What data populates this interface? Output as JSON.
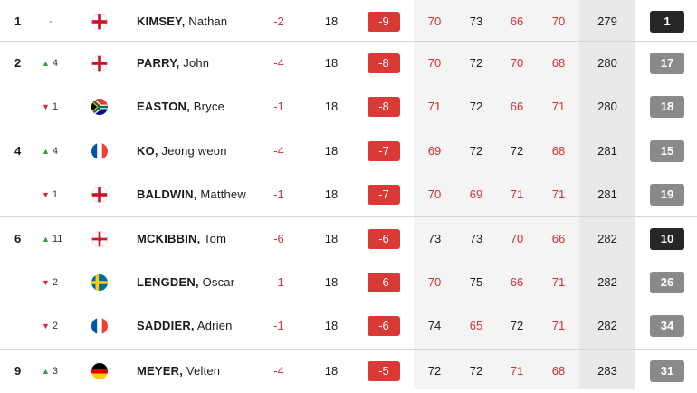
{
  "leaderboard": {
    "rows": [
      {
        "pos": "1",
        "move": "-",
        "move_dir": "none",
        "flag": "england",
        "last": "KIMSEY,",
        "first": "Nathan",
        "today": "-2",
        "thru": "18",
        "total": "-9",
        "r1": "70",
        "r2": "73",
        "r3": "66",
        "r4": "70",
        "agg": "279",
        "proj": "1",
        "proj_style": "dark"
      },
      {
        "pos": "2",
        "move": "4",
        "move_dir": "up",
        "flag": "england",
        "last": "PARRY,",
        "first": "John",
        "today": "-4",
        "thru": "18",
        "total": "-8",
        "r1": "70",
        "r2": "72",
        "r3": "70",
        "r4": "68",
        "agg": "280",
        "proj": "17",
        "proj_style": "grey"
      },
      {
        "pos": "",
        "move": "1",
        "move_dir": "down",
        "flag": "south-africa",
        "last": "EASTON,",
        "first": "Bryce",
        "today": "-1",
        "thru": "18",
        "total": "-8",
        "r1": "71",
        "r2": "72",
        "r3": "66",
        "r4": "71",
        "agg": "280",
        "proj": "18",
        "proj_style": "grey"
      },
      {
        "pos": "4",
        "move": "4",
        "move_dir": "up",
        "flag": "france",
        "last": "KO,",
        "first": "Jeong weon",
        "today": "-4",
        "thru": "18",
        "total": "-7",
        "r1": "69",
        "r2": "72",
        "r3": "72",
        "r4": "68",
        "agg": "281",
        "proj": "15",
        "proj_style": "grey"
      },
      {
        "pos": "",
        "move": "1",
        "move_dir": "down",
        "flag": "england",
        "last": "BALDWIN,",
        "first": "Matthew",
        "today": "-1",
        "thru": "18",
        "total": "-7",
        "r1": "70",
        "r2": "69",
        "r3": "71",
        "r4": "71",
        "agg": "281",
        "proj": "19",
        "proj_style": "grey"
      },
      {
        "pos": "6",
        "move": "11",
        "move_dir": "up",
        "flag": "northern-ireland",
        "last": "MCKIBBIN,",
        "first": "Tom",
        "today": "-6",
        "thru": "18",
        "total": "-6",
        "r1": "73",
        "r2": "73",
        "r3": "70",
        "r4": "66",
        "agg": "282",
        "proj": "10",
        "proj_style": "dark"
      },
      {
        "pos": "",
        "move": "2",
        "move_dir": "down",
        "flag": "sweden",
        "last": "LENGDEN,",
        "first": "Oscar",
        "today": "-1",
        "thru": "18",
        "total": "-6",
        "r1": "70",
        "r2": "75",
        "r3": "66",
        "r4": "71",
        "agg": "282",
        "proj": "26",
        "proj_style": "grey"
      },
      {
        "pos": "",
        "move": "2",
        "move_dir": "down",
        "flag": "france",
        "last": "SADDIER,",
        "first": "Adrien",
        "today": "-1",
        "thru": "18",
        "total": "-6",
        "r1": "74",
        "r2": "65",
        "r3": "72",
        "r4": "71",
        "agg": "282",
        "proj": "34",
        "proj_style": "grey"
      },
      {
        "pos": "9",
        "move": "3",
        "move_dir": "up",
        "flag": "germany",
        "last": "MEYER,",
        "first": "Velten",
        "today": "-4",
        "thru": "18",
        "total": "-5",
        "r1": "72",
        "r2": "72",
        "r3": "71",
        "r4": "68",
        "agg": "283",
        "proj": "31",
        "proj_style": "grey"
      }
    ]
  },
  "colors": {
    "under_par": "#d32f2f",
    "total_badge": "#d93a36",
    "move_up": "#2f9e44",
    "move_down": "#d32f2f",
    "proj_dark": "#262626",
    "proj_grey": "#8a8a8a"
  }
}
